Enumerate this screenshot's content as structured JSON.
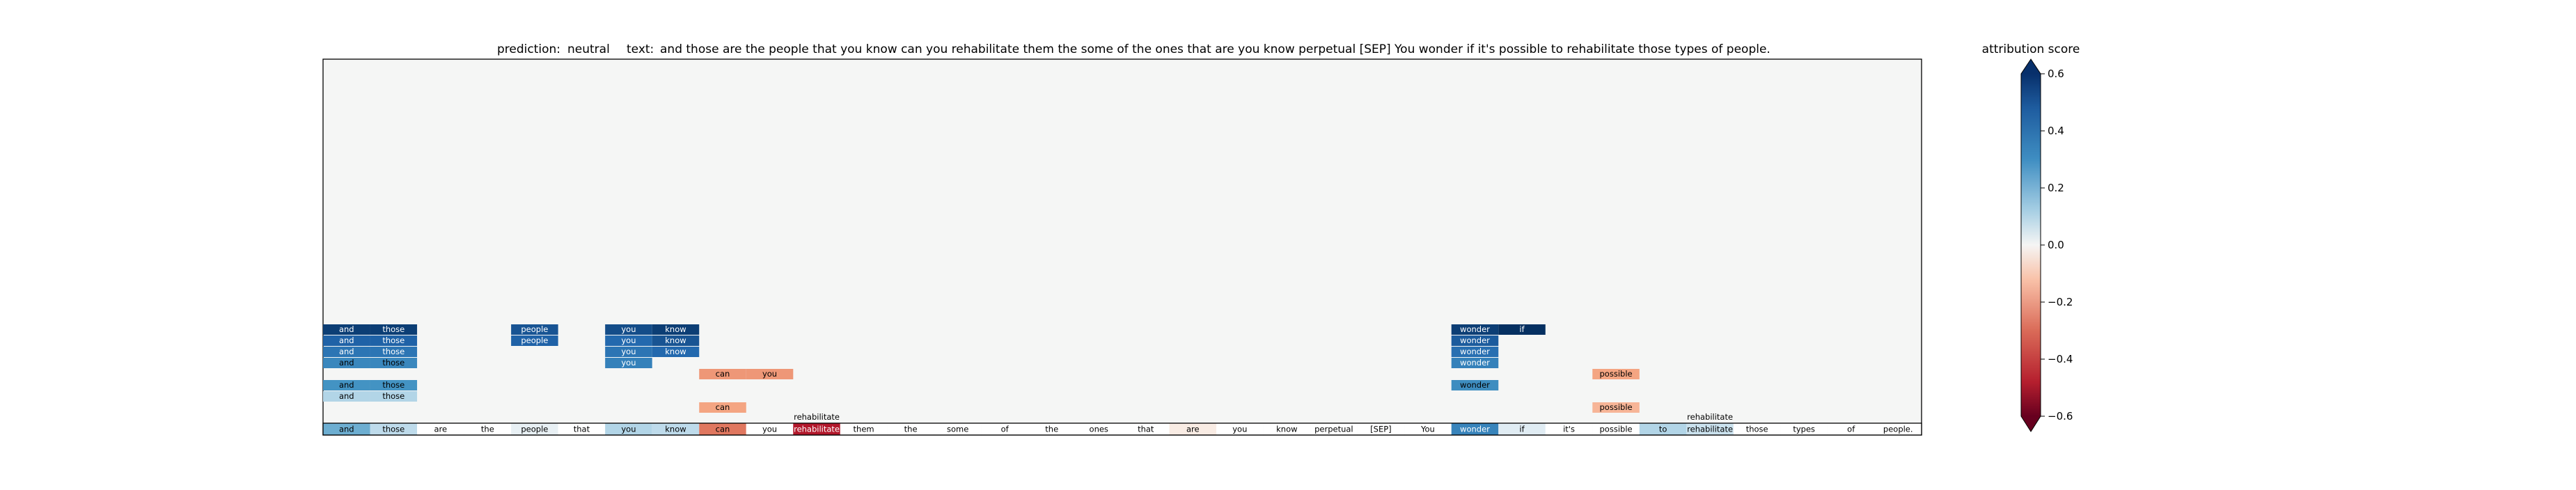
{
  "header": {
    "prediction_label": "prediction:",
    "prediction_value": "neutral",
    "text_label": "text:",
    "text_value": "and those are the people that you know can you rehabilitate them the some of the ones that are you know perpetual [SEP] You wonder if it's possible to rehabilitate those types of people."
  },
  "colorbar": {
    "title": "attribution score",
    "min": -0.6,
    "max": 0.6,
    "ticks": [
      0.6,
      0.4,
      0.2,
      0.0,
      -0.2,
      -0.4,
      -0.6
    ],
    "tick_labels": [
      "0.6",
      "0.4",
      "0.2",
      "0.0",
      "−0.2",
      "−0.4",
      "−0.6"
    ],
    "extend": "both"
  },
  "chart_data": {
    "type": "heatmap",
    "title": "prediction:  neutral     text:  and those are the people that you know can you rehabilitate them the some of the ones that are you know perpetual [SEP] You wonder if it's possible to rehabilitate those types of people.",
    "tokens": [
      "and",
      "those",
      "are",
      "the",
      "people",
      "that",
      "you",
      "know",
      "can",
      "you",
      "rehabilitate",
      "them",
      "the",
      "some",
      "of",
      "the",
      "ones",
      "that",
      "are",
      "you",
      "know",
      "perpetual",
      "[SEP]",
      "You",
      "wonder",
      "if",
      "it's",
      "possible",
      "to",
      "rehabilitate",
      "those",
      "types",
      "of",
      "people."
    ],
    "base_row_scores": [
      0.22,
      0.08,
      0.0,
      0.0,
      0.02,
      0.0,
      0.1,
      0.08,
      -0.25,
      0.0,
      -0.45,
      0.0,
      0.0,
      0.0,
      0.0,
      0.0,
      0.0,
      0.0,
      -0.02,
      0.0,
      0.0,
      0.0,
      0.0,
      0.0,
      0.35,
      0.03,
      0.0,
      0.0,
      0.1,
      0.06,
      0.0,
      0.0,
      0.0,
      0.0
    ],
    "cells": [
      {
        "row": 0,
        "col": 0,
        "text": "and",
        "value": 0.56
      },
      {
        "row": 0,
        "col": 1,
        "text": "those",
        "value": 0.56
      },
      {
        "row": 0,
        "col": 4,
        "text": "people",
        "value": 0.5
      },
      {
        "row": 0,
        "col": 6,
        "text": "you",
        "value": 0.52
      },
      {
        "row": 0,
        "col": 7,
        "text": "know",
        "value": 0.56
      },
      {
        "row": 0,
        "col": 24,
        "text": "wonder",
        "value": 0.56
      },
      {
        "row": 0,
        "col": 25,
        "text": "if",
        "value": 0.62
      },
      {
        "row": 1,
        "col": 0,
        "text": "and",
        "value": 0.46
      },
      {
        "row": 1,
        "col": 1,
        "text": "those",
        "value": 0.46
      },
      {
        "row": 1,
        "col": 4,
        "text": "people",
        "value": 0.46
      },
      {
        "row": 1,
        "col": 6,
        "text": "you",
        "value": 0.44
      },
      {
        "row": 1,
        "col": 7,
        "text": "know",
        "value": 0.5
      },
      {
        "row": 1,
        "col": 24,
        "text": "wonder",
        "value": 0.48
      },
      {
        "row": 2,
        "col": 0,
        "text": "and",
        "value": 0.4
      },
      {
        "row": 2,
        "col": 1,
        "text": "those",
        "value": 0.4
      },
      {
        "row": 2,
        "col": 6,
        "text": "you",
        "value": 0.4
      },
      {
        "row": 2,
        "col": 7,
        "text": "know",
        "value": 0.44
      },
      {
        "row": 2,
        "col": 24,
        "text": "wonder",
        "value": 0.42
      },
      {
        "row": 3,
        "col": 0,
        "text": "and",
        "value": 0.34
      },
      {
        "row": 3,
        "col": 1,
        "text": "those",
        "value": 0.34
      },
      {
        "row": 3,
        "col": 6,
        "text": "you",
        "value": 0.36
      },
      {
        "row": 3,
        "col": 24,
        "text": "wonder",
        "value": 0.36
      },
      {
        "row": 4,
        "col": 8,
        "text": "can",
        "value": -0.18
      },
      {
        "row": 4,
        "col": 9,
        "text": "you",
        "value": -0.18
      },
      {
        "row": 4,
        "col": 27,
        "text": "possible",
        "value": -0.15
      },
      {
        "row": 5,
        "col": 0,
        "text": "and",
        "value": 0.3
      },
      {
        "row": 5,
        "col": 1,
        "text": "those",
        "value": 0.3
      },
      {
        "row": 5,
        "col": 24,
        "text": "wonder",
        "value": 0.32
      },
      {
        "row": 6,
        "col": 0,
        "text": "and",
        "value": 0.1
      },
      {
        "row": 6,
        "col": 1,
        "text": "those",
        "value": 0.1
      },
      {
        "row": 7,
        "col": 8,
        "text": "can",
        "value": -0.15
      },
      {
        "row": 7,
        "col": 27,
        "text": "possible",
        "value": -0.12
      },
      {
        "row": 8,
        "col": 10,
        "text": "rehabilitate",
        "value": 0.0
      },
      {
        "row": 8,
        "col": 29,
        "text": "rehabilitate",
        "value": 0.0
      }
    ]
  }
}
